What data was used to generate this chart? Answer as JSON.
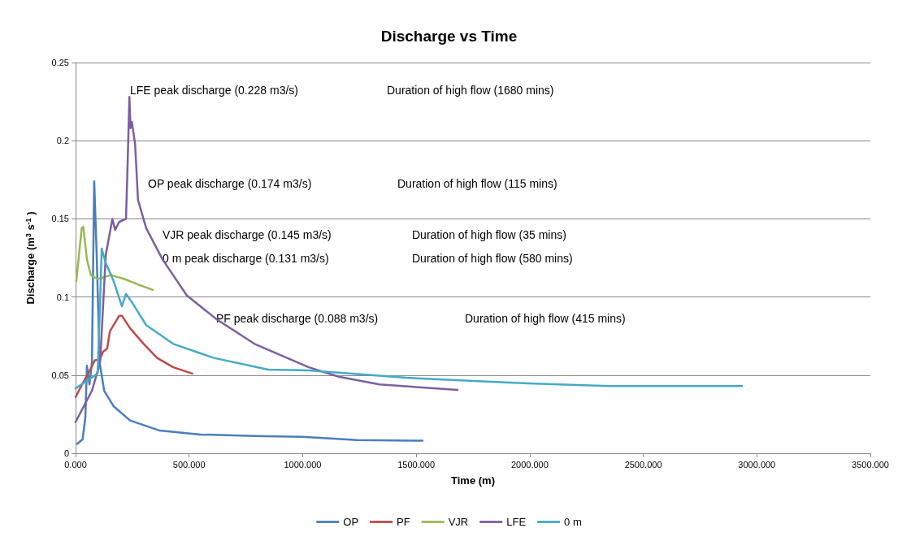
{
  "chart_data": {
    "type": "line",
    "title": "Discharge vs Time",
    "xlabel": "Time (m)",
    "ylabel": "Discharge (m$^{3}$ s$^{-1}$ )",
    "xlim": [
      0,
      3500
    ],
    "xticks": [
      {
        "value": 0,
        "label": "0.000"
      },
      {
        "value": 500,
        "label": "500.000"
      },
      {
        "value": 1000,
        "label": "1000.000"
      },
      {
        "value": 1500,
        "label": "1500.000"
      },
      {
        "value": 2000,
        "label": "2000.000"
      },
      {
        "value": 2500,
        "label": "2500.000"
      },
      {
        "value": 3000,
        "label": "3000.000"
      },
      {
        "value": 3500,
        "label": "3500.000"
      }
    ],
    "ylim": [
      0,
      0.25
    ],
    "yticks": [
      0,
      0.05,
      0.1,
      0.15,
      0.2,
      0.25
    ],
    "grid": "y",
    "legend": "bottom",
    "series": [
      {
        "name": "OP",
        "color": "#4a7ebb",
        "x": [
          7,
          31,
          43,
          50,
          61,
          72,
          82,
          93,
          106,
          126,
          168,
          240,
          371,
          550,
          790,
          1000,
          1240,
          1528
        ],
        "values": [
          0.006,
          0.009,
          0.023,
          0.056,
          0.044,
          0.058,
          0.174,
          0.127,
          0.058,
          0.04,
          0.03,
          0.021,
          0.0145,
          0.012,
          0.011,
          0.0105,
          0.0085,
          0.008
        ]
      },
      {
        "name": "PF",
        "color": "#be4b48",
        "x": [
          0,
          36,
          61,
          85,
          107,
          121,
          139,
          151,
          180,
          192,
          204,
          240,
          300,
          359,
          430,
          514
        ],
        "values": [
          0.036,
          0.046,
          0.0525,
          0.0595,
          0.06,
          0.065,
          0.067,
          0.078,
          0.085,
          0.088,
          0.088,
          0.08,
          0.07,
          0.061,
          0.055,
          0.051
        ]
      },
      {
        "name": "VJR",
        "color": "#98b954",
        "x": [
          3,
          13,
          27,
          34,
          50,
          67,
          97,
          157,
          215,
          275,
          340
        ],
        "values": [
          0.11,
          0.124,
          0.144,
          0.145,
          0.124,
          0.114,
          0.1115,
          0.114,
          0.1115,
          0.108,
          0.1045
        ]
      },
      {
        "name": "LFE",
        "color": "#7d5fa0",
        "x": [
          0,
          72,
          108,
          133,
          162,
          174,
          192,
          222,
          228,
          237,
          242,
          248,
          262,
          275,
          311,
          383,
          490,
          622,
          788,
          1027,
          1159,
          1338,
          1682
        ],
        "values": [
          0.02,
          0.04,
          0.058,
          0.127,
          0.15,
          0.143,
          0.148,
          0.15,
          0.179,
          0.228,
          0.208,
          0.212,
          0.198,
          0.162,
          0.144,
          0.124,
          0.101,
          0.0856,
          0.07,
          0.055,
          0.049,
          0.044,
          0.0405
        ]
      },
      {
        "name": "0 m",
        "color": "#46aac5",
        "x": [
          0,
          97,
          107,
          115,
          132,
          168,
          204,
          222,
          251,
          311,
          430,
          609,
          848,
          1027,
          1457,
          1697,
          1994,
          2351,
          2935
        ],
        "values": [
          0.0415,
          0.051,
          0.092,
          0.131,
          0.122,
          0.11,
          0.094,
          0.102,
          0.096,
          0.082,
          0.07,
          0.061,
          0.0535,
          0.053,
          0.0483,
          0.0467,
          0.0447,
          0.043,
          0.043
        ]
      }
    ],
    "annotations": [
      "LFE peak discharge (0.228 m3/s)",
      "Duration of high flow (1680 mins)",
      "OP peak discharge (0.174 m3/s)",
      "Duration of high flow (115 mins)",
      "VJR peak discharge (0.145 m3/s)",
      "Duration of high flow (35 mins)",
      "0 m peak discharge (0.131 m3/s)",
      "Duration of high flow (580 mins)",
      "PF peak discharge (0.088 m3/s)",
      "Duration of high flow (415 mins)"
    ]
  }
}
